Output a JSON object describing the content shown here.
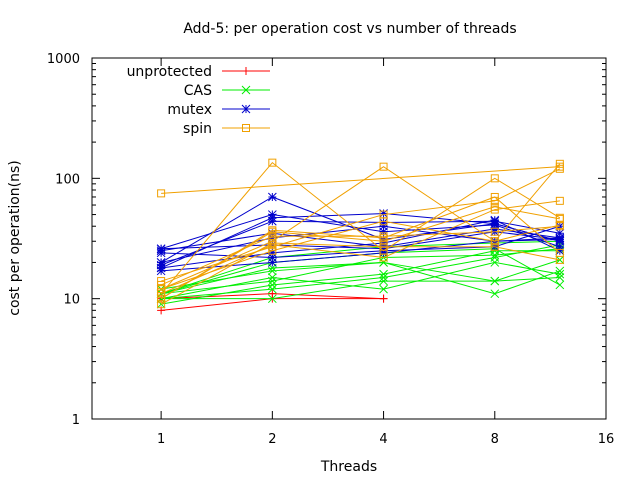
{
  "chart_data": {
    "type": "line",
    "title": "Add-5: per operation cost vs number of threads",
    "xlabel": "Threads",
    "ylabel": "cost per operation(ns)",
    "xscale": "log2",
    "yscale": "log10",
    "xlim": [
      0.65,
      16
    ],
    "ylim": [
      1,
      1000
    ],
    "xticks": [
      1,
      2,
      4,
      8,
      16
    ],
    "xtick_labels": [
      "1",
      "2",
      "4",
      "8",
      "16"
    ],
    "yticks": [
      1,
      10,
      100,
      1000
    ],
    "ytick_labels": [
      "1",
      "10",
      "100",
      "1000"
    ],
    "grid": false,
    "legend_position": "top-left",
    "x": [
      1,
      2,
      4,
      8,
      12
    ],
    "series": [
      {
        "name": "unprotected",
        "color": "#ff0000",
        "marker": "plus",
        "lines": [
          [
            8,
            10,
            10,
            null,
            null
          ],
          [
            10,
            11,
            10,
            null,
            null
          ]
        ]
      },
      {
        "name": "CAS",
        "color": "#00ee00",
        "marker": "cross",
        "lines": [
          [
            11,
            20,
            24,
            26,
            13
          ],
          [
            10,
            10,
            14,
            14,
            15
          ],
          [
            11,
            22,
            27,
            29,
            30
          ],
          [
            10,
            15,
            12,
            20,
            16
          ],
          [
            12,
            17,
            20,
            11,
            17
          ],
          [
            11,
            14,
            22,
            23,
            26
          ],
          [
            9,
            13,
            16,
            25,
            25
          ],
          [
            11,
            18,
            20,
            14,
            21
          ],
          [
            10,
            12,
            15,
            22,
            28
          ]
        ]
      },
      {
        "name": "mutex",
        "color": "#0000cc",
        "marker": "star",
        "lines": [
          [
            20,
            70,
            31,
            42,
            30
          ],
          [
            18,
            47,
            51,
            42,
            30
          ],
          [
            25,
            35,
            27,
            38,
            32
          ],
          [
            18,
            24,
            29,
            45,
            25
          ],
          [
            26,
            28,
            26,
            36,
            31
          ],
          [
            19,
            44,
            43,
            44,
            35
          ],
          [
            24,
            22,
            25,
            27,
            40
          ],
          [
            17,
            20,
            24,
            30,
            32
          ],
          [
            20,
            32,
            40,
            30,
            31
          ],
          [
            26,
            50,
            36,
            41,
            27
          ]
        ]
      },
      {
        "name": "spin",
        "color": "#f0a000",
        "marker": "square",
        "lines": [
          [
            75,
            null,
            null,
            null,
            125
          ],
          [
            11,
            135,
            25,
            100,
            47
          ],
          [
            12,
            30,
            125,
            30,
            132
          ],
          [
            14,
            27,
            50,
            65,
            120
          ],
          [
            10,
            37,
            32,
            70,
            24
          ],
          [
            9,
            29,
            27,
            27,
            21
          ],
          [
            10,
            36,
            30,
            58,
            46
          ],
          [
            12,
            25,
            44,
            30,
            41
          ],
          [
            11,
            28,
            22,
            55,
            65
          ],
          [
            13,
            33,
            33,
            36,
            40
          ]
        ]
      }
    ]
  }
}
